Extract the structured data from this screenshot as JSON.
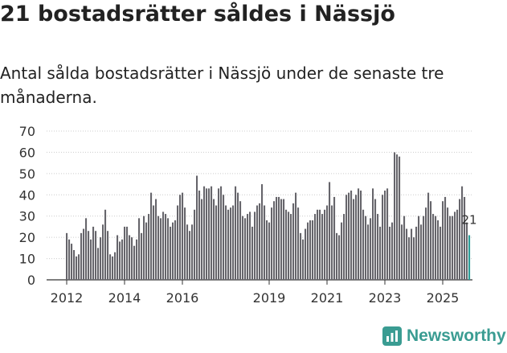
{
  "title": "21 bostadsrätter såldes i Nässjö",
  "subtitle": "Antal sålda bostadsrätter i Nässjö under de senaste tre månaderna.",
  "brand": {
    "name": "Newsworthy",
    "icon": "newsworthy-logo-icon"
  },
  "colors": {
    "bar": "#66656b",
    "highlight": "#2a9d97",
    "grid": "#cccccc",
    "text": "#333333"
  },
  "chart_data": {
    "type": "bar",
    "title": "21 bostadsrätter såldes i Nässjö",
    "xlabel": "",
    "ylabel": "",
    "ylim": [
      0,
      70
    ],
    "yticks": [
      0,
      10,
      20,
      30,
      40,
      50,
      60,
      70
    ],
    "xticks": [
      {
        "label": "2012",
        "index": 0
      },
      {
        "label": "2014",
        "index": 24
      },
      {
        "label": "2016",
        "index": 48
      },
      {
        "label": "2019",
        "index": 84
      },
      {
        "label": "2021",
        "index": 108
      },
      {
        "label": "2023",
        "index": 132
      },
      {
        "label": "2025",
        "index": 156
      }
    ],
    "start": "2012-01",
    "values": [
      22,
      19,
      17,
      14,
      11,
      12,
      22,
      24,
      29,
      23,
      19,
      25,
      23,
      15,
      20,
      26,
      33,
      23,
      12,
      11,
      13,
      21,
      18,
      19,
      25,
      25,
      21,
      20,
      16,
      19,
      29,
      22,
      30,
      27,
      31,
      41,
      35,
      38,
      30,
      29,
      32,
      31,
      29,
      25,
      27,
      28,
      35,
      40,
      41,
      34,
      26,
      23,
      26,
      33,
      49,
      42,
      38,
      44,
      43,
      43,
      44,
      38,
      35,
      43,
      44,
      40,
      35,
      33,
      34,
      35,
      44,
      41,
      37,
      30,
      29,
      31,
      32,
      25,
      32,
      35,
      36,
      45,
      35,
      28,
      27,
      34,
      37,
      39,
      39,
      38,
      38,
      33,
      32,
      31,
      36,
      41,
      34,
      22,
      19,
      24,
      27,
      28,
      28,
      31,
      33,
      33,
      31,
      33,
      35,
      46,
      35,
      39,
      22,
      21,
      27,
      31,
      40,
      41,
      42,
      38,
      40,
      43,
      42,
      33,
      30,
      26,
      29,
      43,
      38,
      31,
      25,
      40,
      42,
      43,
      25,
      27,
      60,
      59,
      58,
      26,
      30,
      24,
      20,
      24,
      20,
      25,
      30,
      26,
      30,
      34,
      41,
      37,
      31,
      30,
      28,
      25,
      37,
      39,
      34,
      30,
      30,
      32,
      33,
      38,
      44,
      39,
      27,
      21
    ],
    "highlight_last": 1,
    "last_label": "21"
  }
}
